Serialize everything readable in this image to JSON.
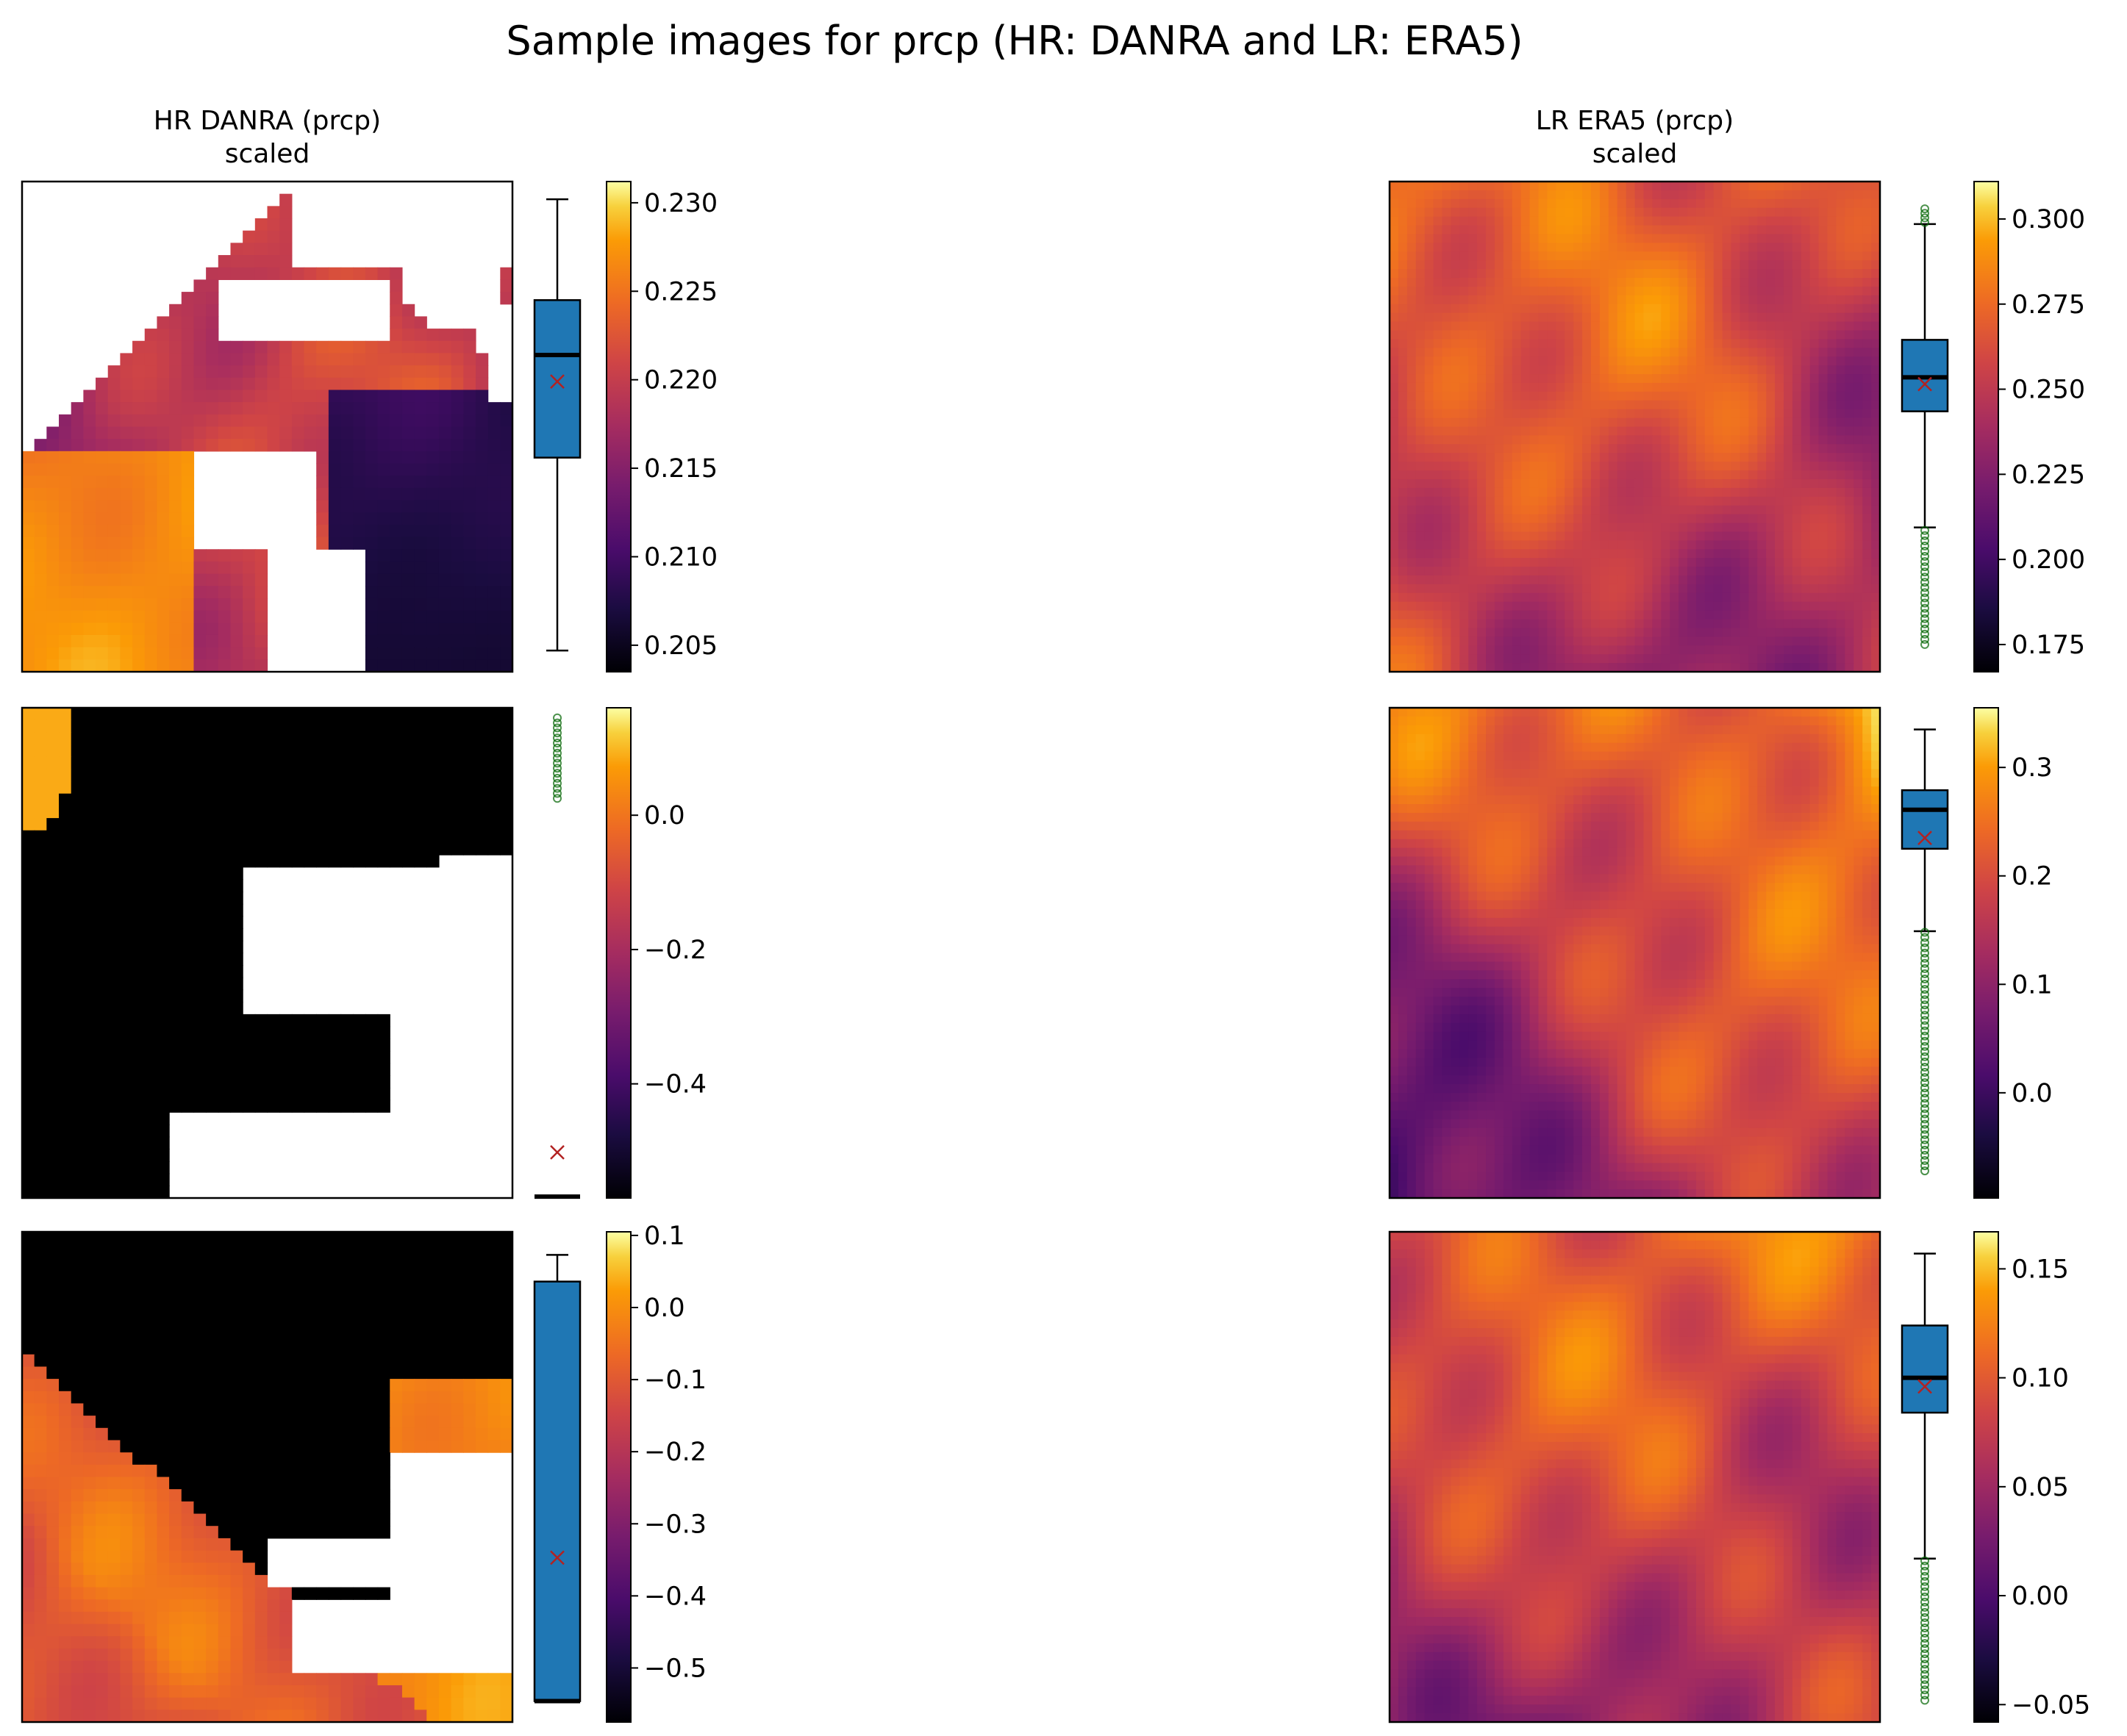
{
  "title": "Sample images for prcp (HR: DANRA and LR: ERA5)",
  "colors": {
    "box_fill": "#1f77b4",
    "median": "#000000",
    "mean_marker": "#b22222",
    "outlier": "#006400",
    "colormap": "inferno"
  },
  "chart_data": [
    {
      "type": "heatmap",
      "column": "HR DANRA (prcp)",
      "row": 1,
      "title": "HR DANRA (prcp)\nscaled",
      "colorbar": {
        "range": [
          0.2035,
          0.2312
        ],
        "ticks": [
          "0.205",
          "0.210",
          "0.215",
          "0.220",
          "0.225",
          "0.230"
        ],
        "tick_values": [
          0.205,
          0.21,
          0.215,
          0.22,
          0.225,
          0.23
        ]
      },
      "boxplot": {
        "whisker_low": 0.2047,
        "q1": 0.2156,
        "median": 0.2214,
        "q3": 0.2245,
        "whisker_high": 0.2302,
        "mean": 0.2199,
        "outliers_low": [],
        "outliers_high": []
      }
    },
    {
      "type": "heatmap",
      "column": "LR ERA5 (prcp)",
      "row": 1,
      "title": "LR ERA5 (prcp)\nscaled",
      "colorbar": {
        "range": [
          0.167,
          0.311
        ],
        "ticks": [
          "0.175",
          "0.200",
          "0.225",
          "0.250",
          "0.275",
          "0.300"
        ],
        "tick_values": [
          0.175,
          0.2,
          0.225,
          0.25,
          0.275,
          0.3
        ]
      },
      "boxplot": {
        "whisker_low": 0.2094,
        "q1": 0.2435,
        "median": 0.2535,
        "q3": 0.2645,
        "whisker_high": 0.2985,
        "mean": 0.2515,
        "outliers_low": [
          0.175,
          0.2085
        ],
        "outliers_high": [
          0.299,
          0.303
        ]
      }
    },
    {
      "type": "heatmap",
      "column": "HR DANRA (prcp)",
      "row": 2,
      "colorbar": {
        "range": [
          -0.57,
          0.16
        ],
        "ticks": [
          "−0.4",
          "−0.2",
          "0.0"
        ],
        "tick_values": [
          -0.4,
          -0.2,
          0.0
        ]
      },
      "boxplot": {
        "whisker_low": -0.568,
        "q1": -0.568,
        "median": -0.568,
        "q3": -0.568,
        "whisker_high": -0.568,
        "mean": -0.502,
        "outliers_low": [],
        "outliers_high": [
          0.025,
          0.145
        ]
      }
    },
    {
      "type": "heatmap",
      "column": "LR ERA5 (prcp)",
      "row": 2,
      "colorbar": {
        "range": [
          -0.097,
          0.355
        ],
        "ticks": [
          "0.0",
          "0.1",
          "0.2",
          "0.3"
        ],
        "tick_values": [
          0.0,
          0.1,
          0.2,
          0.3
        ]
      },
      "boxplot": {
        "whisker_low": 0.149,
        "q1": 0.225,
        "median": 0.261,
        "q3": 0.279,
        "whisker_high": 0.335,
        "mean": 0.235,
        "outliers_low": [
          -0.072,
          0.148
        ],
        "outliers_high": []
      }
    },
    {
      "type": "heatmap",
      "column": "HR DANRA (prcp)",
      "row": 3,
      "colorbar": {
        "range": [
          -0.575,
          0.105
        ],
        "ticks": [
          "−0.5",
          "−0.4",
          "−0.3",
          "−0.2",
          "−0.1",
          "0.0",
          "0.1"
        ],
        "tick_values": [
          -0.5,
          -0.4,
          -0.3,
          -0.2,
          -0.1,
          0.0,
          0.1
        ]
      },
      "boxplot": {
        "whisker_low": -0.546,
        "q1": -0.546,
        "median": -0.546,
        "q3": 0.036,
        "whisker_high": 0.073,
        "mean": -0.347,
        "outliers_low": [],
        "outliers_high": []
      }
    },
    {
      "type": "heatmap",
      "column": "LR ERA5 (prcp)",
      "row": 3,
      "colorbar": {
        "range": [
          -0.058,
          0.167
        ],
        "ticks": [
          "−0.05",
          "0.00",
          "0.05",
          "0.10",
          "0.15"
        ],
        "tick_values": [
          -0.05,
          0.0,
          0.05,
          0.1,
          0.15
        ]
      },
      "boxplot": {
        "whisker_low": 0.017,
        "q1": 0.084,
        "median": 0.1,
        "q3": 0.124,
        "whisker_high": 0.157,
        "mean": 0.096,
        "outliers_low": [
          -0.048,
          0.016
        ],
        "outliers_high": []
      }
    }
  ]
}
